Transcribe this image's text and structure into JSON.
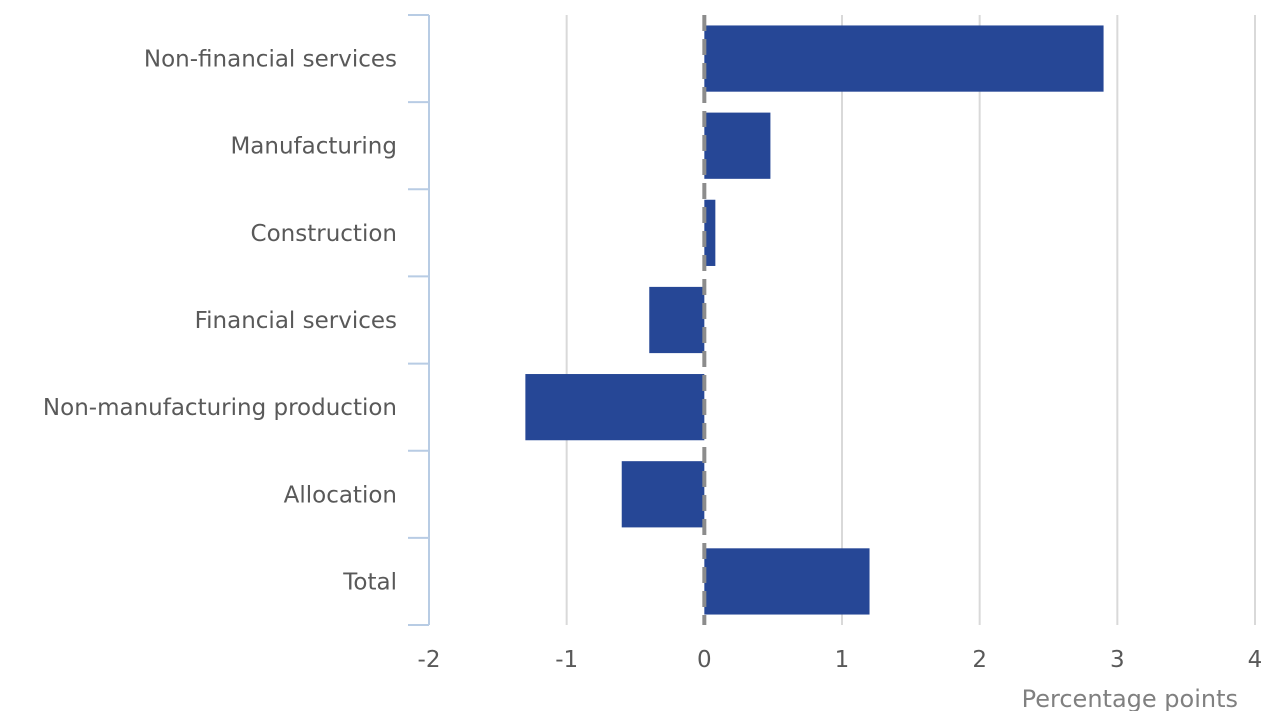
{
  "chart_data": {
    "type": "bar",
    "orientation": "horizontal",
    "categories": [
      "Non-financial services",
      "Manufacturing",
      "Construction",
      "Financial services",
      "Non-manufacturing production",
      "Allocation",
      "Total"
    ],
    "values": [
      2.9,
      0.48,
      0.08,
      -0.4,
      -1.3,
      -0.6,
      1.2
    ],
    "xlabel": "Percentage points",
    "ylabel": "",
    "xlim": [
      -2,
      4
    ],
    "xticks": [
      -2,
      -1,
      0,
      1,
      2,
      3,
      4
    ],
    "xtick_labels": [
      "-2",
      "-1",
      "0",
      "1",
      "2",
      "3",
      "4"
    ],
    "grid": "vertical",
    "legend": "none",
    "colors": {
      "bar": "#264796",
      "grid": "#d9d9d9",
      "zero_line": "#8c8c8c",
      "category_axis": "#b8cce4",
      "text": "#595959"
    }
  }
}
